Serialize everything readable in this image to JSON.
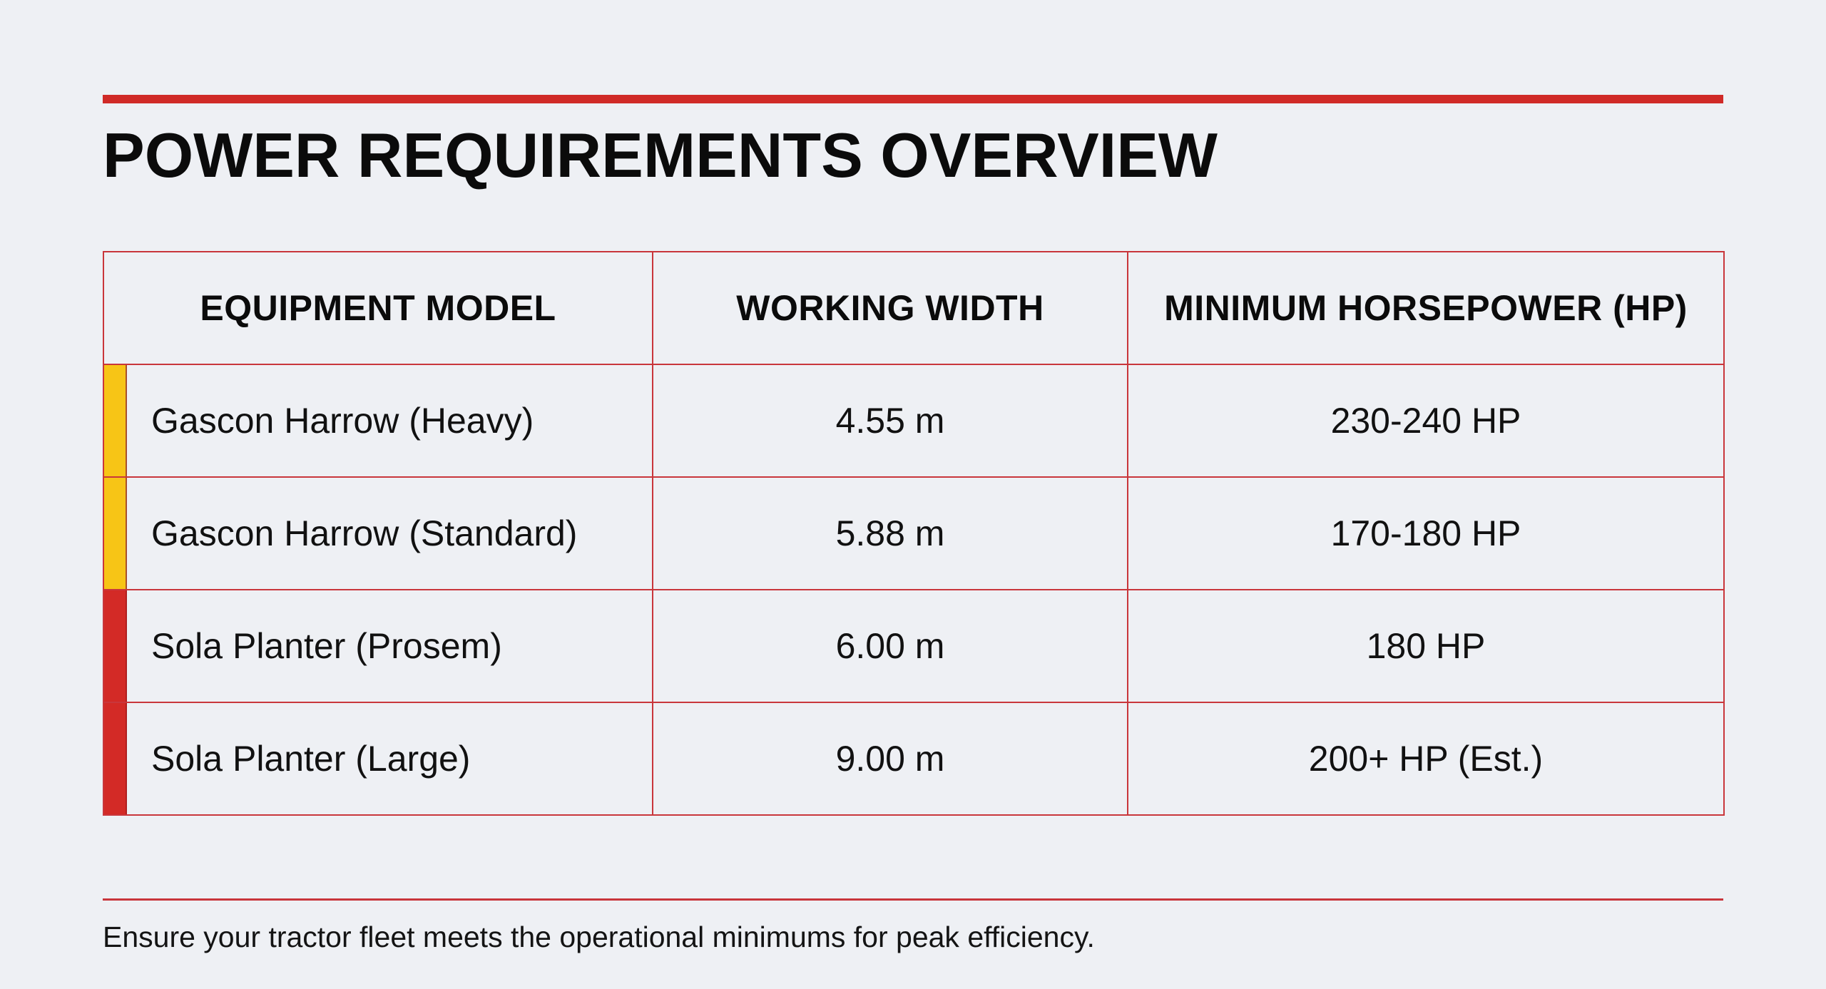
{
  "page": {
    "title": "POWER REQUIREMENTS OVERVIEW",
    "footer_note": "Ensure your tractor fleet meets the operational minimums for peak efficiency."
  },
  "colors": {
    "background": "#eef0f4",
    "accent_red": "#d02a27",
    "border_red": "#c9363b",
    "harrow_stripe": "#f7c516",
    "planter_stripe": "#d32a26"
  },
  "table": {
    "headers": [
      "EQUIPMENT MODEL",
      "WORKING WIDTH",
      "MINIMUM HORSEPOWER (HP)"
    ],
    "rows": [
      {
        "model": "Gascon Harrow (Heavy)",
        "width": "4.55 m",
        "hp": "230-240 HP",
        "stripe": "yellow"
      },
      {
        "model": "Gascon Harrow (Standard)",
        "width": "5.88 m",
        "hp": "170-180 HP",
        "stripe": "yellow"
      },
      {
        "model": "Sola Planter (Prosem)",
        "width": "6.00 m",
        "hp": "180 HP",
        "stripe": "red"
      },
      {
        "model": "Sola Planter (Large)",
        "width": "9.00 m",
        "hp": "200+ HP (Est.)",
        "stripe": "red"
      }
    ]
  }
}
